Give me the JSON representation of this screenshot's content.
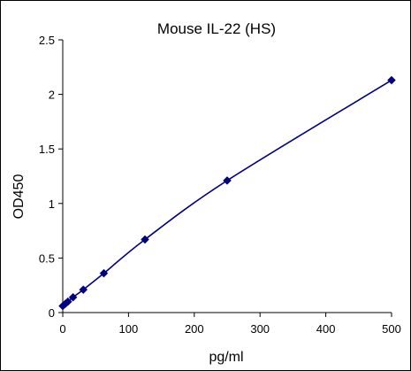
{
  "chart_data": {
    "type": "line",
    "title": "Mouse IL-22 (HS)",
    "xlabel": "pg/ml",
    "ylabel": "OD450",
    "xlim": [
      0,
      500
    ],
    "ylim": [
      0,
      2.5
    ],
    "x_ticks": [
      "0",
      "100",
      "200",
      "300",
      "400",
      "500"
    ],
    "y_ticks": [
      "0",
      "0.5",
      "1",
      "1.5",
      "2",
      "2.5"
    ],
    "grid": false,
    "legend": "none",
    "series": [
      {
        "color": "#000080",
        "marker": "diamond",
        "x": [
          0,
          3.9,
          7.8,
          15.6,
          31.25,
          62.5,
          125,
          250,
          500
        ],
        "y": [
          0.06,
          0.08,
          0.1,
          0.14,
          0.21,
          0.36,
          0.67,
          1.21,
          2.13
        ]
      }
    ]
  }
}
